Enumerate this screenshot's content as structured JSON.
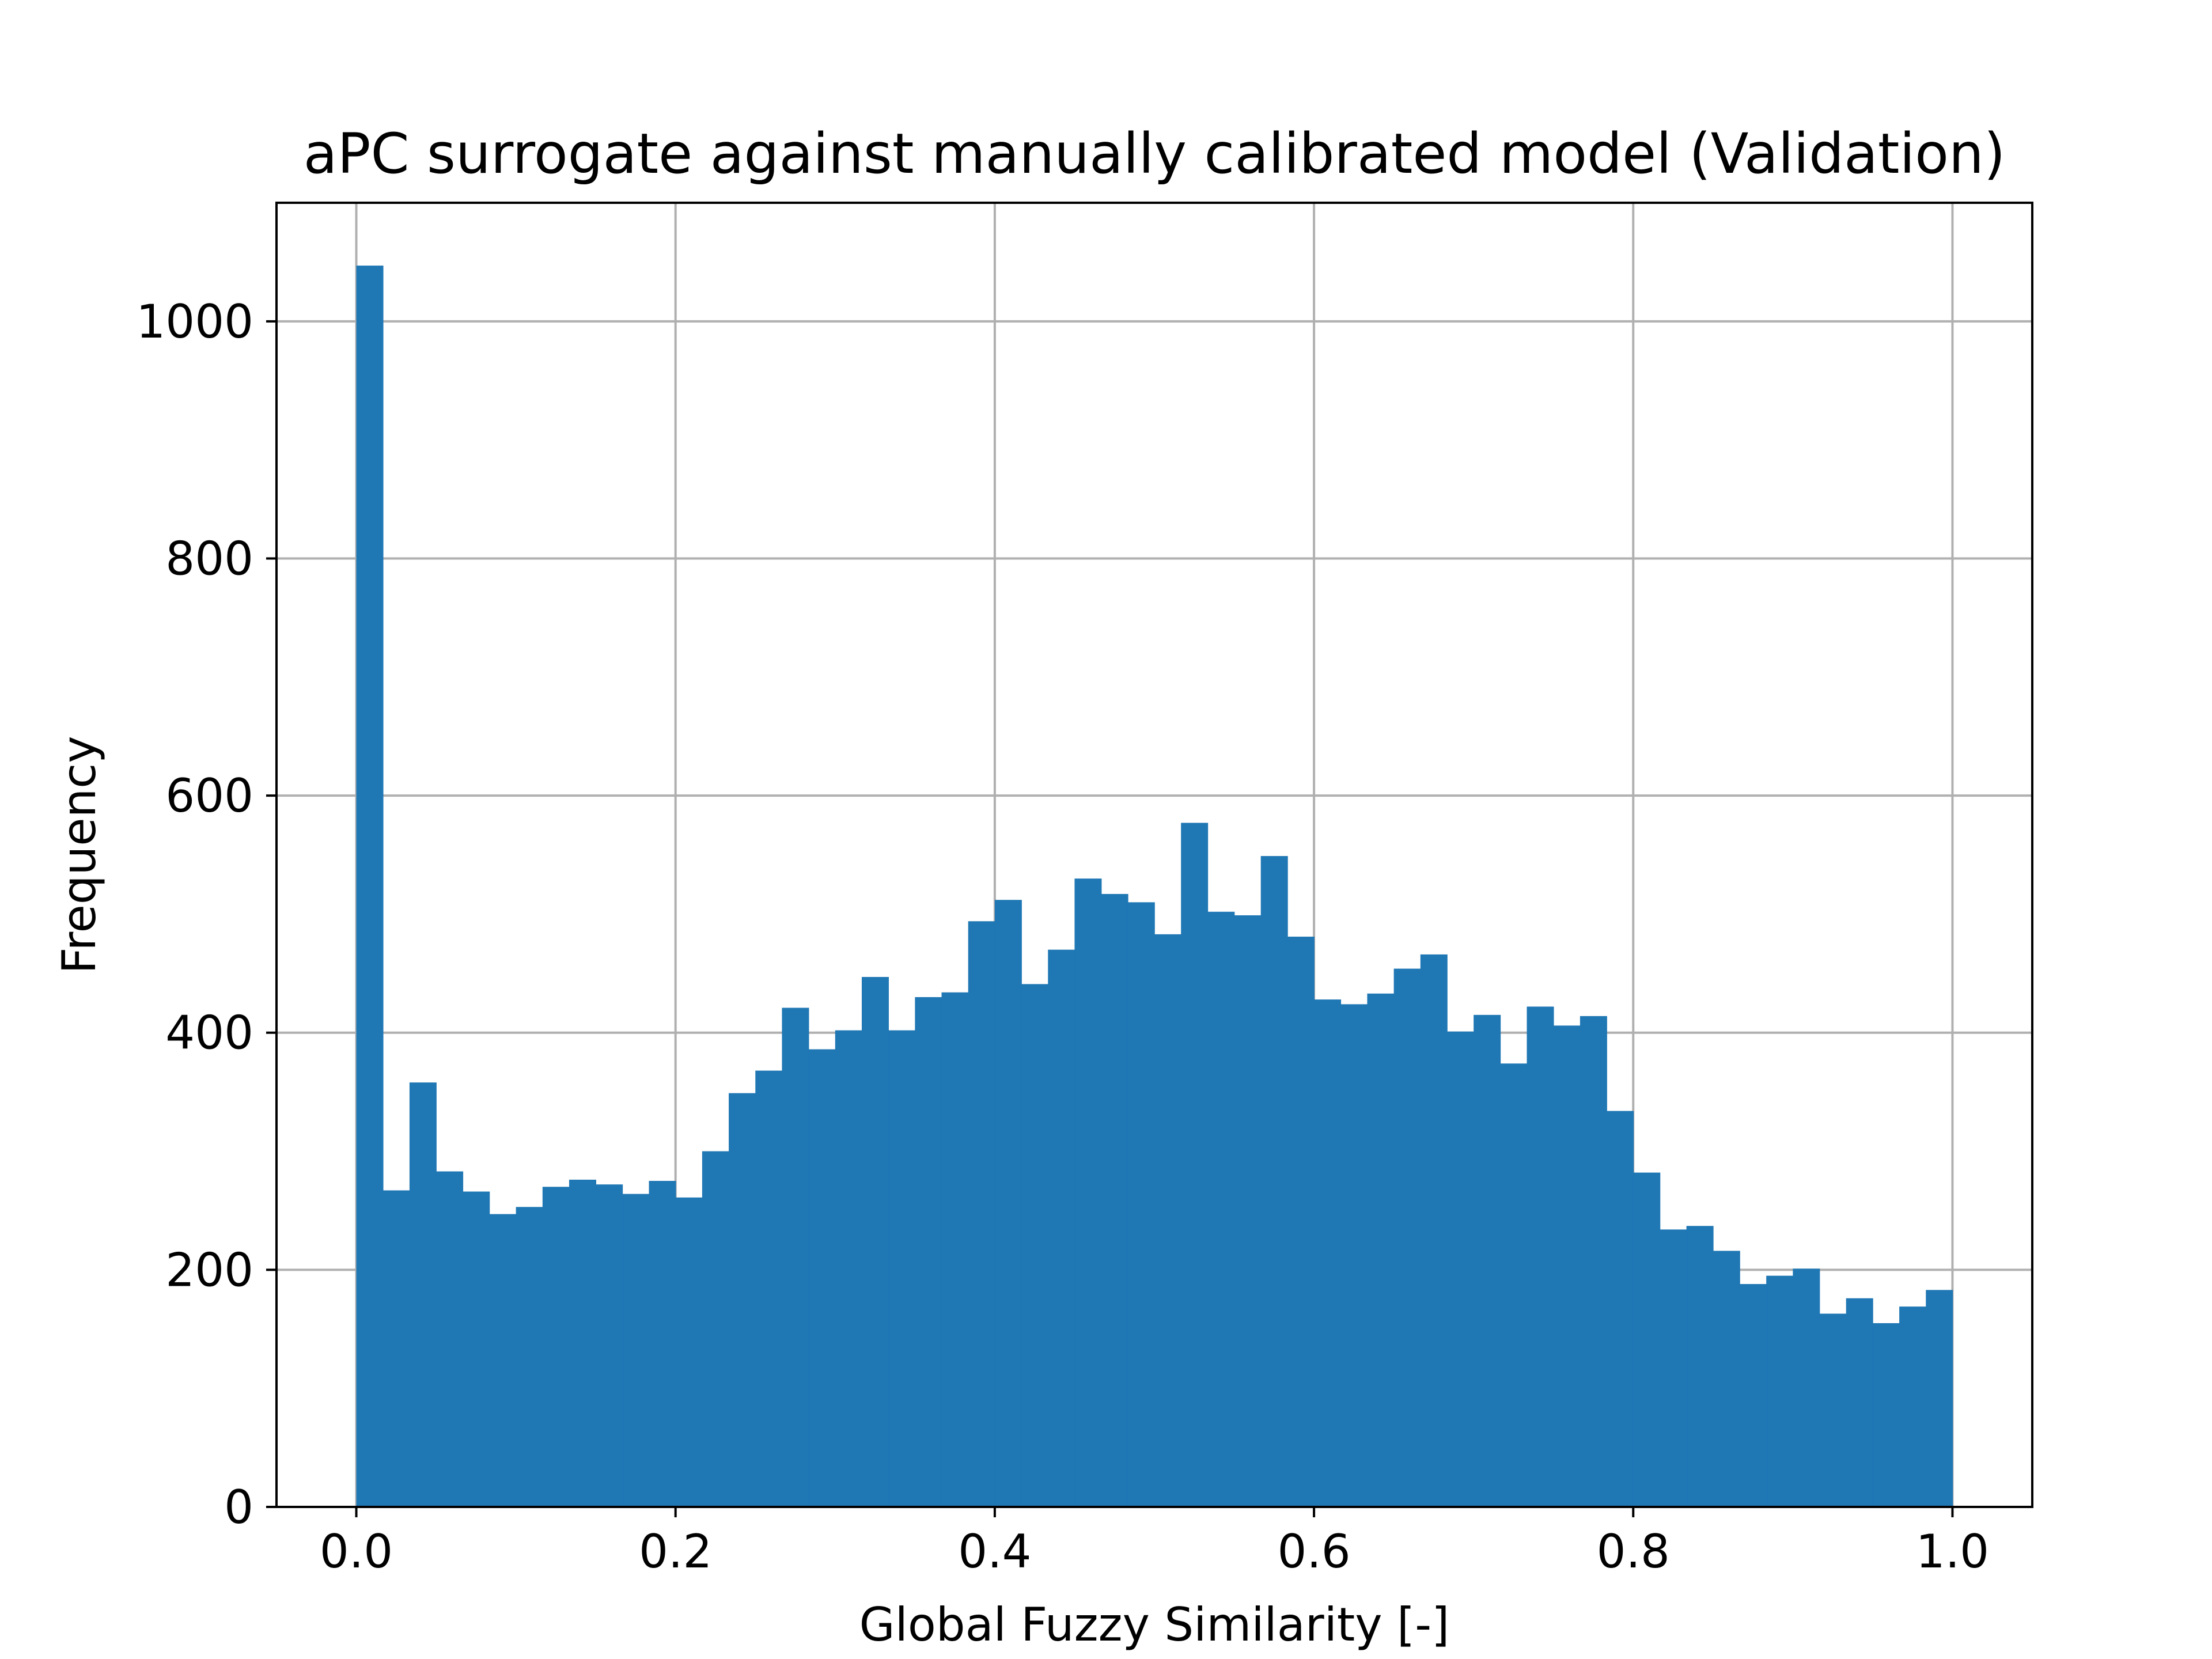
{
  "chart_data": {
    "type": "bar",
    "title": "aPC surrogate against manually calibrated model (Validation)",
    "xlabel": "Global Fuzzy Similarity [-]",
    "ylabel": "Frequency",
    "xlim": [
      -0.05,
      1.05
    ],
    "ylim": [
      0,
      1100
    ],
    "x_ticks": [
      0.0,
      0.2,
      0.4,
      0.6,
      0.8,
      1.0
    ],
    "x_tick_labels": [
      "0.0",
      "0.2",
      "0.4",
      "0.6",
      "0.8",
      "1.0"
    ],
    "y_ticks": [
      0,
      200,
      400,
      600,
      800,
      1000
    ],
    "y_tick_labels": [
      "0",
      "200",
      "400",
      "600",
      "800",
      "1000"
    ],
    "grid": true,
    "bar_color": "#1f77b4",
    "bin_range": [
      0.0,
      1.0
    ],
    "bin_count": 60,
    "values": [
      1047,
      267,
      358,
      283,
      266,
      247,
      253,
      270,
      276,
      272,
      264,
      275,
      261,
      300,
      349,
      368,
      421,
      386,
      402,
      447,
      402,
      430,
      434,
      494,
      512,
      441,
      470,
      530,
      517,
      510,
      483,
      577,
      502,
      499,
      549,
      481,
      428,
      424,
      433,
      454,
      466,
      401,
      415,
      374,
      422,
      406,
      414,
      334,
      282,
      234,
      237,
      216,
      188,
      195,
      201,
      163,
      176,
      155,
      169,
      183
    ]
  }
}
